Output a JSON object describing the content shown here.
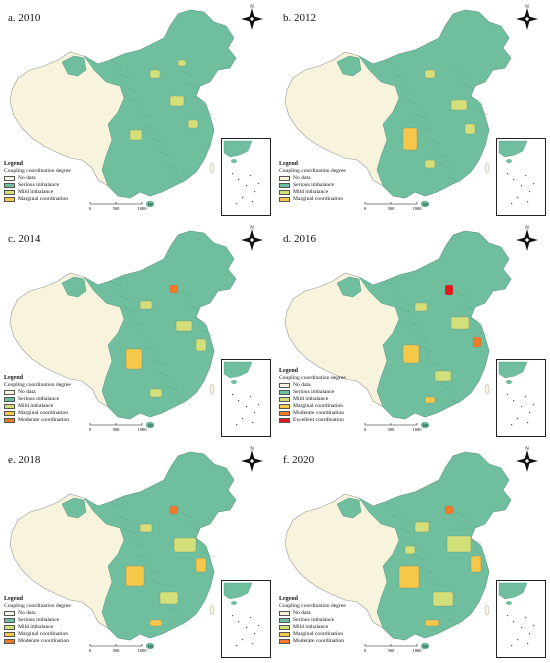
{
  "colors": {
    "no_data": "#f7f3dc",
    "serious_imbalance": "#6fbf9f",
    "mild_imbalance": "#d3e07a",
    "marginal_coordination": "#f5c84a",
    "moderate_coordination": "#ef7a2a",
    "excellent_coordination": "#e01a1a"
  },
  "legend_common": {
    "title": "Legend",
    "subtitle": "Coupling coordination degree"
  },
  "north_label": "N",
  "scale": {
    "t0": "0",
    "t1": "500",
    "t2": "1000",
    "unit": "km"
  },
  "panels": [
    {
      "title": "a. 2010",
      "items": [
        "No data",
        "Serious imbalance",
        "Mild imbalance",
        "Marginal coordination"
      ],
      "keys": [
        "no_data",
        "serious_imbalance",
        "mild_imbalance",
        "marginal_coordination"
      ]
    },
    {
      "title": "b. 2012",
      "items": [
        "No data",
        "Serious imbalance",
        "Mild imbalance",
        "Marginal coordination"
      ],
      "keys": [
        "no_data",
        "serious_imbalance",
        "mild_imbalance",
        "marginal_coordination"
      ]
    },
    {
      "title": "c. 2014",
      "items": [
        "No data",
        "Serious imbalance",
        "Mild imbalance",
        "Marginal coordination",
        "Moderate coordination"
      ],
      "keys": [
        "no_data",
        "serious_imbalance",
        "mild_imbalance",
        "marginal_coordination",
        "moderate_coordination"
      ]
    },
    {
      "title": "d. 2016",
      "items": [
        "No data",
        "Serious imbalance",
        "Mild imbalance",
        "Marginal coordination",
        "Moderate coordination",
        "Excellent coordination"
      ],
      "keys": [
        "no_data",
        "serious_imbalance",
        "mild_imbalance",
        "marginal_coordination",
        "moderate_coordination",
        "excellent_coordination"
      ]
    },
    {
      "title": "e. 2018",
      "items": [
        "No data",
        "Serious imbalance",
        "Mild imbalance",
        "Marginal coordination",
        "Moderate coordination"
      ],
      "keys": [
        "no_data",
        "serious_imbalance",
        "mild_imbalance",
        "marginal_coordination",
        "moderate_coordination"
      ]
    },
    {
      "title": "f. 2020",
      "items": [
        "No data",
        "Serious imbalance",
        "Mild imbalance",
        "Marginal coordination",
        "Moderate coordination"
      ],
      "keys": [
        "no_data",
        "serious_imbalance",
        "mild_imbalance",
        "marginal_coordination",
        "moderate_coordination"
      ]
    }
  ]
}
